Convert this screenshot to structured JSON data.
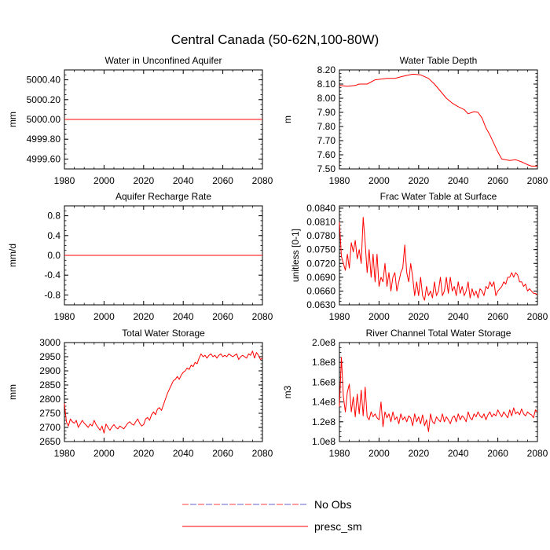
{
  "figure_title": "Central Canada (50-62N,100-80W)",
  "legend": {
    "entries": [
      {
        "label": "No Obs",
        "color": "#4040a0",
        "style": "dashed-two-tone"
      },
      {
        "label": "presc_sm",
        "color": "#ff0000",
        "style": "solid"
      }
    ]
  },
  "colors": {
    "series": "#ff0000",
    "obs_dash_a": "#ff0000",
    "obs_dash_b": "#3030c0"
  },
  "chart_data": [
    {
      "type": "line",
      "title": "Water in Unconfined Aquifer",
      "xlabel": "",
      "ylabel": "mm",
      "xlim": [
        1980,
        2080
      ],
      "ylim": [
        4999.5,
        5000.5
      ],
      "xticks": [
        "1980",
        "2000",
        "2020",
        "2040",
        "2060",
        "2080"
      ],
      "xtickvals": [
        1980,
        2000,
        2020,
        2040,
        2060,
        2080
      ],
      "yticks": [
        "4999.60",
        "4999.80",
        "5000.00",
        "5000.20",
        "5000.40"
      ],
      "ytickvals": [
        4999.6,
        4999.8,
        5000.0,
        5000.2,
        5000.4
      ],
      "series": [
        {
          "name": "presc_sm",
          "mode": "constant",
          "value": 5000.0
        }
      ]
    },
    {
      "type": "line",
      "title": "Water Table Depth",
      "xlabel": "",
      "ylabel": "m",
      "xlim": [
        1980,
        2080
      ],
      "ylim": [
        7.5,
        8.2
      ],
      "xticks": [
        "1980",
        "2000",
        "2020",
        "2040",
        "2060",
        "2080"
      ],
      "xtickvals": [
        1980,
        2000,
        2020,
        2040,
        2060,
        2080
      ],
      "yticks": [
        "7.50",
        "7.60",
        "7.70",
        "7.80",
        "7.90",
        "8.00",
        "8.10",
        "8.20"
      ],
      "ytickvals": [
        7.5,
        7.6,
        7.7,
        7.8,
        7.9,
        8.0,
        8.1,
        8.2
      ],
      "series": [
        {
          "name": "presc_sm",
          "mode": "points",
          "points": [
            [
              1980,
              8.09
            ],
            [
              1984,
              8.085
            ],
            [
              1988,
              8.09
            ],
            [
              1990,
              8.1
            ],
            [
              1994,
              8.1
            ],
            [
              1998,
              8.13
            ],
            [
              2004,
              8.14
            ],
            [
              2008,
              8.14
            ],
            [
              2012,
              8.155
            ],
            [
              2017,
              8.17
            ],
            [
              2021,
              8.165
            ],
            [
              2025,
              8.14
            ],
            [
              2028,
              8.1
            ],
            [
              2031,
              8.05
            ],
            [
              2034,
              8.0
            ],
            [
              2037,
              7.965
            ],
            [
              2040,
              7.94
            ],
            [
              2043,
              7.92
            ],
            [
              2045,
              7.89
            ],
            [
              2048,
              7.905
            ],
            [
              2050,
              7.9
            ],
            [
              2052,
              7.86
            ],
            [
              2054,
              7.79
            ],
            [
              2056,
              7.74
            ],
            [
              2058,
              7.68
            ],
            [
              2060,
              7.62
            ],
            [
              2062,
              7.57
            ],
            [
              2066,
              7.56
            ],
            [
              2069,
              7.565
            ],
            [
              2072,
              7.55
            ],
            [
              2075,
              7.53
            ],
            [
              2077,
              7.52
            ],
            [
              2080,
              7.52
            ]
          ]
        }
      ]
    },
    {
      "type": "line",
      "title": "Aquifer Recharge Rate",
      "xlabel": "",
      "ylabel": "mm/d",
      "xlim": [
        1980,
        2080
      ],
      "ylim": [
        -1.0,
        1.0
      ],
      "xticks": [
        "1980",
        "2000",
        "2020",
        "2040",
        "2060",
        "2080"
      ],
      "xtickvals": [
        1980,
        2000,
        2020,
        2040,
        2060,
        2080
      ],
      "yticks": [
        "-0.8",
        "-0.4",
        "0.0",
        "0.4",
        "0.8"
      ],
      "ytickvals": [
        -0.8,
        -0.4,
        0.0,
        0.4,
        0.8
      ],
      "series": [
        {
          "name": "presc_sm",
          "mode": "constant",
          "value": 0.0
        }
      ]
    },
    {
      "type": "line",
      "title": "Frac Water Table at Surface",
      "xlabel": "",
      "ylabel": "unitless [0-1]",
      "xlim": [
        1980,
        2080
      ],
      "ylim": [
        0.063,
        0.0845
      ],
      "xticks": [
        "1980",
        "2000",
        "2020",
        "2040",
        "2060",
        "2080"
      ],
      "xtickvals": [
        1980,
        2000,
        2020,
        2040,
        2060,
        2080
      ],
      "yticks": [
        "0.0630",
        "0.0660",
        "0.0690",
        "0.0720",
        "0.0750",
        "0.0780",
        "0.0810",
        "0.0840"
      ],
      "ytickvals": [
        0.063,
        0.066,
        0.069,
        0.072,
        0.075,
        0.078,
        0.081,
        0.084
      ],
      "series": [
        {
          "name": "presc_sm",
          "mode": "annual",
          "start": 1980,
          "values": [
            0.081,
            0.0735,
            0.072,
            0.0705,
            0.074,
            0.071,
            0.0765,
            0.0745,
            0.077,
            0.073,
            0.075,
            0.072,
            0.082,
            0.0765,
            0.07,
            0.075,
            0.069,
            0.074,
            0.068,
            0.074,
            0.067,
            0.069,
            0.068,
            0.072,
            0.067,
            0.07,
            0.066,
            0.069,
            0.07,
            0.066,
            0.068,
            0.07,
            0.071,
            0.076,
            0.07,
            0.068,
            0.072,
            0.069,
            0.065,
            0.068,
            0.065,
            0.069,
            0.065,
            0.064,
            0.067,
            0.065,
            0.066,
            0.0645,
            0.068,
            0.065,
            0.066,
            0.069,
            0.065,
            0.066,
            0.069,
            0.0655,
            0.069,
            0.066,
            0.067,
            0.065,
            0.068,
            0.0655,
            0.067,
            0.065,
            0.066,
            0.068,
            0.0645,
            0.0665,
            0.065,
            0.066,
            0.0645,
            0.0665,
            0.066,
            0.065,
            0.067,
            0.0665,
            0.068,
            0.067,
            0.068,
            0.065,
            0.066,
            0.0665,
            0.067,
            0.068,
            0.0675,
            0.069,
            0.069,
            0.07,
            0.069,
            0.07,
            0.0695,
            0.068,
            0.068,
            0.067,
            0.0675,
            0.066,
            0.0665,
            0.066,
            0.0655,
            0.0655,
            0.0652
          ]
        }
      ]
    },
    {
      "type": "line",
      "title": "Total Water Storage",
      "xlabel": "",
      "ylabel": "mm",
      "xlim": [
        1980,
        2080
      ],
      "ylim": [
        2650,
        3000
      ],
      "xticks": [
        "1980",
        "2000",
        "2020",
        "2040",
        "2060",
        "2080"
      ],
      "xtickvals": [
        1980,
        2000,
        2020,
        2040,
        2060,
        2080
      ],
      "yticks": [
        "2650",
        "2700",
        "2750",
        "2800",
        "2850",
        "2900",
        "2950",
        "3000"
      ],
      "ytickvals": [
        2650,
        2700,
        2750,
        2800,
        2850,
        2900,
        2950,
        3000
      ],
      "series": [
        {
          "name": "presc_sm",
          "mode": "annual",
          "start": 1980,
          "values": [
            2785,
            2720,
            2705,
            2730,
            2720,
            2715,
            2725,
            2700,
            2712,
            2725,
            2715,
            2708,
            2700,
            2712,
            2705,
            2725,
            2710,
            2700,
            2690,
            2705,
            2680,
            2712,
            2700,
            2690,
            2702,
            2710,
            2700,
            2695,
            2705,
            2700,
            2695,
            2705,
            2715,
            2720,
            2712,
            2708,
            2720,
            2730,
            2715,
            2705,
            2710,
            2730,
            2735,
            2725,
            2745,
            2755,
            2745,
            2765,
            2770,
            2760,
            2780,
            2800,
            2820,
            2835,
            2850,
            2865,
            2870,
            2880,
            2870,
            2885,
            2895,
            2900,
            2910,
            2905,
            2920,
            2915,
            2930,
            2925,
            2945,
            2960,
            2950,
            2955,
            2945,
            2955,
            2960,
            2950,
            2955,
            2945,
            2955,
            2960,
            2950,
            2955,
            2950,
            2960,
            2955,
            2950,
            2955,
            2960,
            2940,
            2950,
            2955,
            2950,
            2945,
            2960,
            2955,
            2970,
            2945,
            2965,
            2955,
            2940,
            2945
          ]
        }
      ]
    },
    {
      "type": "line",
      "title": "River Channel Total Water Storage",
      "xlabel": "",
      "ylabel": "m3",
      "xlim": [
        1980,
        2080
      ],
      "ylim": [
        100000000.0,
        200000000.0
      ],
      "xticks": [
        "1980",
        "2000",
        "2020",
        "2040",
        "2060",
        "2080"
      ],
      "xtickvals": [
        1980,
        2000,
        2020,
        2040,
        2060,
        2080
      ],
      "yticks": [
        "1.0e8",
        "1.2e8",
        "1.4e8",
        "1.6e8",
        "1.8e8",
        "2.0e8"
      ],
      "ytickvals": [
        100000000.0,
        120000000.0,
        140000000.0,
        160000000.0,
        180000000.0,
        200000000.0
      ],
      "series": [
        {
          "name": "presc_sm",
          "mode": "annual",
          "start": 1980,
          "values": [
            135000000.0,
            185000000.0,
            145000000.0,
            130000000.0,
            150000000.0,
            158000000.0,
            130000000.0,
            145000000.0,
            125000000.0,
            148000000.0,
            128000000.0,
            152000000.0,
            126000000.0,
            155000000.0,
            125000000.0,
            122000000.0,
            130000000.0,
            125000000.0,
            128000000.0,
            124000000.0,
            122000000.0,
            140000000.0,
            115000000.0,
            130000000.0,
            124000000.0,
            128000000.0,
            120000000.0,
            130000000.0,
            122000000.0,
            125000000.0,
            118000000.0,
            128000000.0,
            122000000.0,
            125000000.0,
            120000000.0,
            126000000.0,
            124000000.0,
            116000000.0,
            128000000.0,
            120000000.0,
            125000000.0,
            118000000.0,
            127000000.0,
            116000000.0,
            122000000.0,
            110000000.0,
            128000000.0,
            120000000.0,
            118000000.0,
            125000000.0,
            122000000.0,
            120000000.0,
            128000000.0,
            120000000.0,
            125000000.0,
            122000000.0,
            118000000.0,
            124000000.0,
            126000000.0,
            120000000.0,
            128000000.0,
            122000000.0,
            126000000.0,
            124000000.0,
            120000000.0,
            130000000.0,
            124000000.0,
            122000000.0,
            128000000.0,
            125000000.0,
            130000000.0,
            126000000.0,
            124000000.0,
            128000000.0,
            122000000.0,
            127000000.0,
            130000000.0,
            125000000.0,
            128000000.0,
            126000000.0,
            132000000.0,
            128000000.0,
            125000000.0,
            130000000.0,
            127000000.0,
            124000000.0,
            132000000.0,
            126000000.0,
            134000000.0,
            128000000.0,
            130000000.0,
            127000000.0,
            133000000.0,
            128000000.0,
            126000000.0,
            130000000.0,
            128000000.0,
            127000000.0,
            124000000.0,
            132000000.0,
            130000000.0
          ]
        }
      ]
    }
  ]
}
